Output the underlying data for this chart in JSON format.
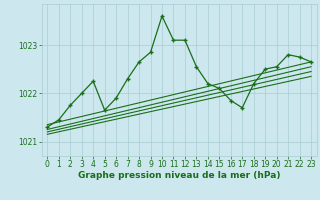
{
  "title": "Graphe pression niveau de la mer (hPa)",
  "background_color": "#cce8ee",
  "grid_color": "#aaccd4",
  "line_color": "#1a6e1a",
  "xlim": [
    -0.5,
    23.5
  ],
  "ylim": [
    1020.7,
    1023.85
  ],
  "yticks": [
    1021,
    1022,
    1023
  ],
  "xticks": [
    0,
    1,
    2,
    3,
    4,
    5,
    6,
    7,
    8,
    9,
    10,
    11,
    12,
    13,
    14,
    15,
    16,
    17,
    18,
    19,
    20,
    21,
    22,
    23
  ],
  "x": [
    0,
    1,
    2,
    3,
    4,
    5,
    6,
    7,
    8,
    9,
    10,
    11,
    12,
    13,
    14,
    15,
    16,
    17,
    18,
    19,
    20,
    21,
    22,
    23
  ],
  "y_main": [
    1021.3,
    1021.45,
    1021.75,
    1022.0,
    1022.25,
    1021.65,
    1021.9,
    1022.3,
    1022.65,
    1022.85,
    1023.6,
    1023.1,
    1023.1,
    1022.55,
    1022.2,
    1022.1,
    1021.85,
    1021.7,
    1022.2,
    1022.5,
    1022.55,
    1022.8,
    1022.75,
    1022.65
  ],
  "trend_lines": [
    {
      "x0": 0,
      "y0": 1021.15,
      "x1": 23,
      "y1": 1022.35
    },
    {
      "x0": 0,
      "y0": 1021.2,
      "x1": 23,
      "y1": 1022.45
    },
    {
      "x0": 0,
      "y0": 1021.25,
      "x1": 23,
      "y1": 1022.55
    },
    {
      "x0": 0,
      "y0": 1021.35,
      "x1": 23,
      "y1": 1022.65
    }
  ],
  "tick_fontsize": 5.5,
  "label_fontsize": 6.5,
  "figsize": [
    3.2,
    2.0
  ],
  "dpi": 100
}
